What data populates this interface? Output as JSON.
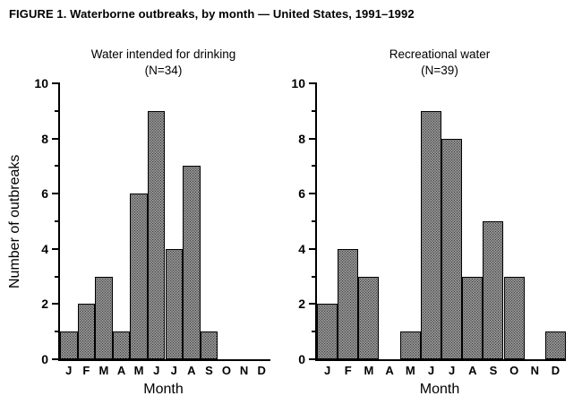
{
  "figure": {
    "title": "FIGURE 1. Waterborne outbreaks, by month — United States, 1991–1992"
  },
  "chart_data": [
    {
      "type": "bar",
      "title": "Water intended for drinking",
      "subtitle": "(N=34)",
      "xlabel": "Month",
      "ylabel": "Number of outbreaks",
      "categories": [
        "J",
        "F",
        "M",
        "A",
        "M",
        "J",
        "J",
        "A",
        "S",
        "O",
        "N",
        "D"
      ],
      "values": [
        1,
        2,
        3,
        1,
        6,
        9,
        4,
        7,
        1,
        0,
        0,
        0
      ],
      "ylim": [
        0,
        10
      ],
      "yticks": [
        0,
        2,
        4,
        6,
        8,
        10
      ],
      "grid": false,
      "legend": "none"
    },
    {
      "type": "bar",
      "title": "Recreational water",
      "subtitle": "(N=39)",
      "xlabel": "Month",
      "ylabel": "",
      "categories": [
        "J",
        "F",
        "M",
        "A",
        "M",
        "J",
        "J",
        "A",
        "S",
        "O",
        "N",
        "D"
      ],
      "values": [
        2,
        4,
        3,
        0,
        1,
        9,
        8,
        3,
        5,
        3,
        0,
        1
      ],
      "ylim": [
        0,
        10
      ],
      "yticks": [
        0,
        2,
        4,
        6,
        8,
        10
      ],
      "grid": false,
      "legend": "none"
    }
  ],
  "style": {
    "bar_fill": "#bdbdbd",
    "bar_dot": "#3d3d3d",
    "bar_edge": "#000000",
    "axis_color": "#000000",
    "background": "#ffffff",
    "text_color": "#000000"
  }
}
